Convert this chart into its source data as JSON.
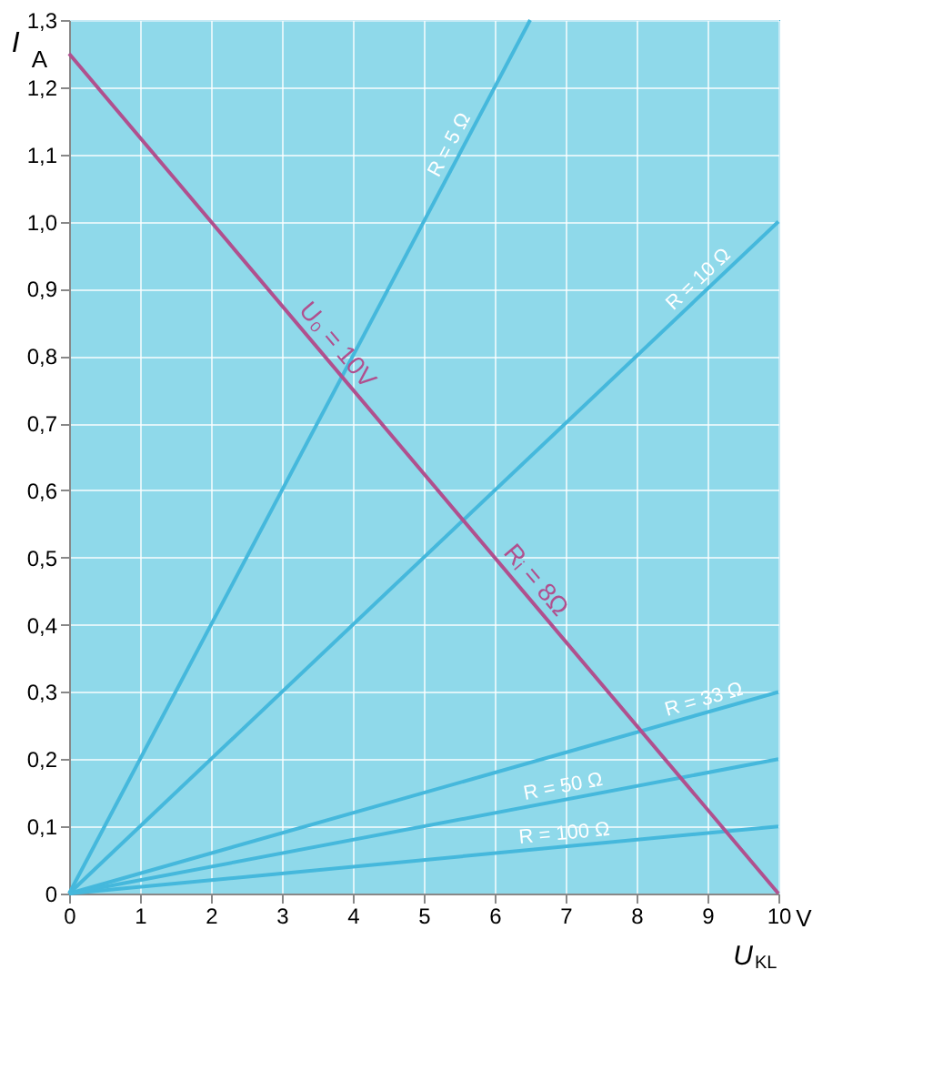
{
  "chart_data": {
    "type": "line",
    "xlabel": "U$_{KL}$",
    "ylabel": "I",
    "xlim": [
      0,
      10
    ],
    "ylim": [
      0,
      1.3
    ],
    "xticks": [
      0,
      1,
      2,
      3,
      4,
      5,
      6,
      7,
      8,
      9,
      10
    ],
    "yticks": [
      0,
      {
        "value": 0.1,
        "label": "0,1"
      },
      {
        "value": 0.2,
        "label": "0,2"
      },
      {
        "value": 0.3,
        "label": "0,3"
      },
      {
        "value": 0.4,
        "label": "0,4"
      },
      {
        "value": 0.5,
        "label": "0,5"
      },
      {
        "value": 0.6,
        "label": "0,6"
      },
      {
        "value": 0.7,
        "label": "0,7"
      },
      {
        "value": 0.8,
        "label": "0,8"
      },
      {
        "value": 0.9,
        "label": "0,9"
      },
      {
        "value": 1.0,
        "label": "1,0"
      },
      {
        "value": 1.1,
        "label": "1,1"
      },
      {
        "value": 1.2,
        "label": "1,2"
      },
      {
        "value": 1.3,
        "label": "1,3"
      }
    ],
    "grid": true,
    "marker": "none",
    "line_style": "solid",
    "series": [
      {
        "name": "R = 5 Ω",
        "color": "#45b8dc",
        "x": [
          0,
          6.5
        ],
        "values": [
          0,
          1.3
        ]
      },
      {
        "name": "R = 10 Ω",
        "color": "#45b8dc",
        "x": [
          0,
          10
        ],
        "values": [
          0,
          1.0
        ]
      },
      {
        "name": "R = 33 Ω",
        "color": "#45b8dc",
        "x": [
          0,
          10
        ],
        "values": [
          0,
          0.3
        ]
      },
      {
        "name": "R = 50 Ω",
        "color": "#45b8dc",
        "x": [
          0,
          10
        ],
        "values": [
          0,
          0.2
        ]
      },
      {
        "name": "R = 100 Ω",
        "color": "#45b8dc",
        "x": [
          0,
          10
        ],
        "values": [
          0,
          0.1
        ]
      },
      {
        "color": "#b0508e",
        "x": [
          0,
          10
        ],
        "values": [
          1.25,
          0
        ]
      }
    ],
    "annotations": [
      "A",
      "V",
      "U₀ = 10V",
      "Rᵢ = 8Ω"
    ]
  }
}
